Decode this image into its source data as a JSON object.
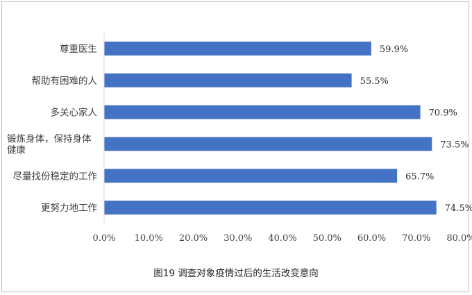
{
  "chart_data": {
    "type": "bar",
    "orientation": "horizontal",
    "title": "图19 调查对象疫情过后的生活改变意向",
    "title_position": "bottom",
    "categories": [
      [
        "尊重医生"
      ],
      [
        "帮助有困难的人"
      ],
      [
        "多关心家人"
      ],
      [
        "锻炼身体，保持身体",
        "健康"
      ],
      [
        "尽量找份稳定的工作"
      ],
      [
        "更努力地工作"
      ]
    ],
    "values": [
      59.9,
      55.5,
      70.9,
      73.5,
      65.7,
      74.5
    ],
    "data_labels": [
      "59.9%",
      "55.5%",
      "70.9%",
      "73.5%",
      "65.7%",
      "74.5%"
    ],
    "xlim": [
      0,
      80
    ],
    "xticks": [
      "0.0%",
      "10.0%",
      "20.0%",
      "30.0%",
      "40.0%",
      "50.0%",
      "60.0%",
      "70.0%",
      "80.0%"
    ],
    "bar_color": "#4472c4",
    "grid": false,
    "legend": false
  }
}
